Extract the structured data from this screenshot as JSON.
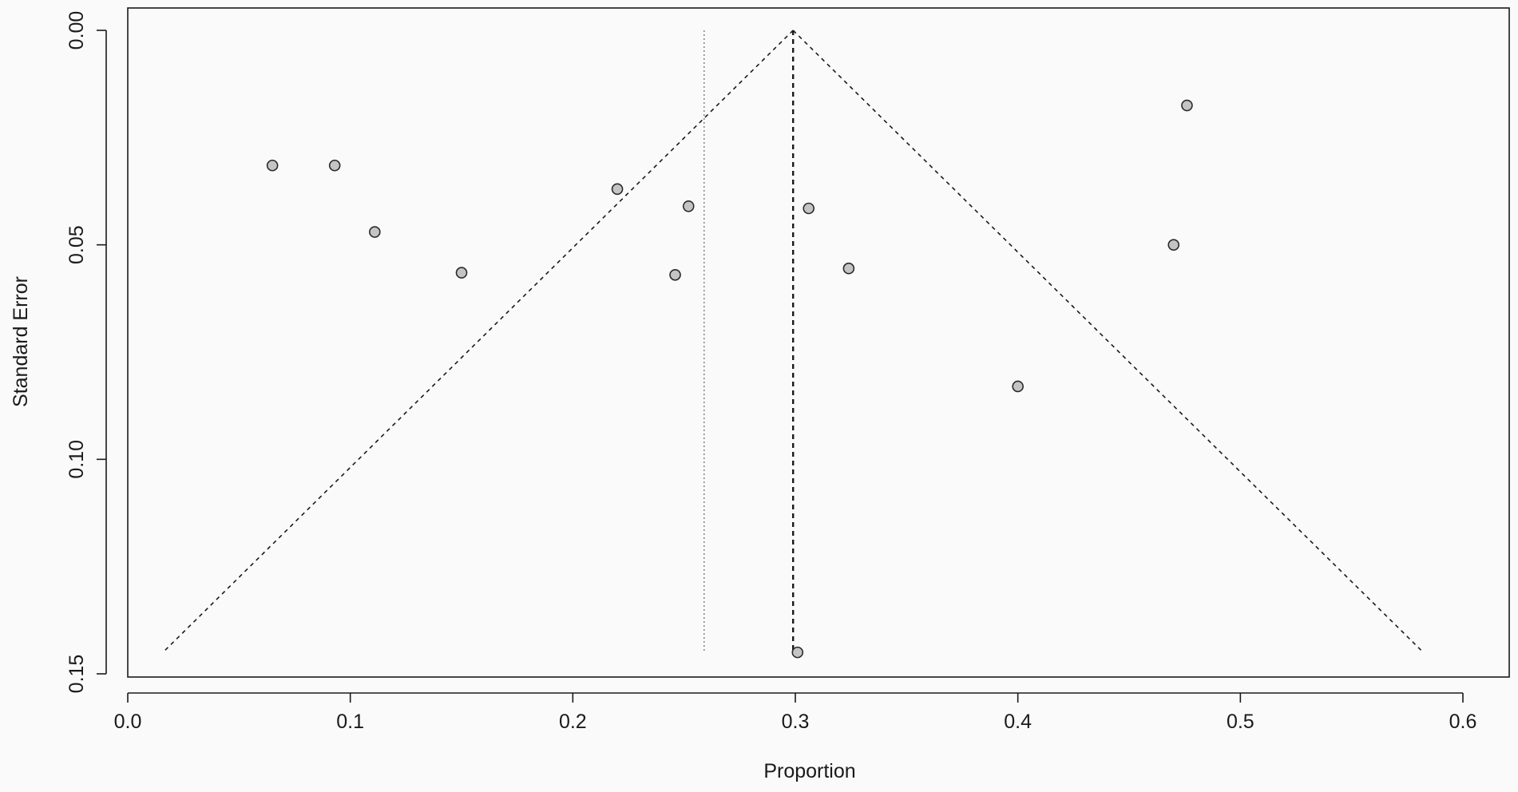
{
  "chart_data": {
    "type": "scatter",
    "title": "",
    "xlabel": "Proportion",
    "ylabel": "Standard Error",
    "xlim": [
      0.0,
      0.6
    ],
    "ylim": [
      0.0,
      0.15
    ],
    "y_axis_reversed": true,
    "x_ticks": [
      0.0,
      0.1,
      0.2,
      0.3,
      0.4,
      0.5,
      0.6
    ],
    "x_tick_labels": [
      "0.0",
      "0.1",
      "0.2",
      "0.3",
      "0.4",
      "0.5",
      "0.6"
    ],
    "y_ticks": [
      0.0,
      0.05,
      0.1,
      0.15
    ],
    "y_tick_labels": [
      "0.00",
      "0.05",
      "0.10",
      "0.15"
    ],
    "grid": false,
    "legend": "none",
    "points": [
      {
        "x": 0.065,
        "y": 0.0315
      },
      {
        "x": 0.093,
        "y": 0.0315
      },
      {
        "x": 0.111,
        "y": 0.047
      },
      {
        "x": 0.15,
        "y": 0.0565
      },
      {
        "x": 0.22,
        "y": 0.037
      },
      {
        "x": 0.246,
        "y": 0.057
      },
      {
        "x": 0.252,
        "y": 0.041
      },
      {
        "x": 0.301,
        "y": 0.145
      },
      {
        "x": 0.306,
        "y": 0.0415
      },
      {
        "x": 0.324,
        "y": 0.0555
      },
      {
        "x": 0.4,
        "y": 0.083
      },
      {
        "x": 0.47,
        "y": 0.05
      },
      {
        "x": 0.476,
        "y": 0.0175
      }
    ],
    "funnel": {
      "center_x": 0.299,
      "apex_se": 0.0,
      "base_se": 0.145,
      "left_base_x": 0.0158,
      "right_base_x": 0.5822
    },
    "fixed_effect_line_x": 0.299,
    "reference_line_x": 0.259,
    "point_fill": "#c4c4c4",
    "point_stroke": "#2a2a2a",
    "line_color": "#1a1a1a",
    "reference_line_color": "#8a8a8a",
    "background": "#fafafa"
  }
}
